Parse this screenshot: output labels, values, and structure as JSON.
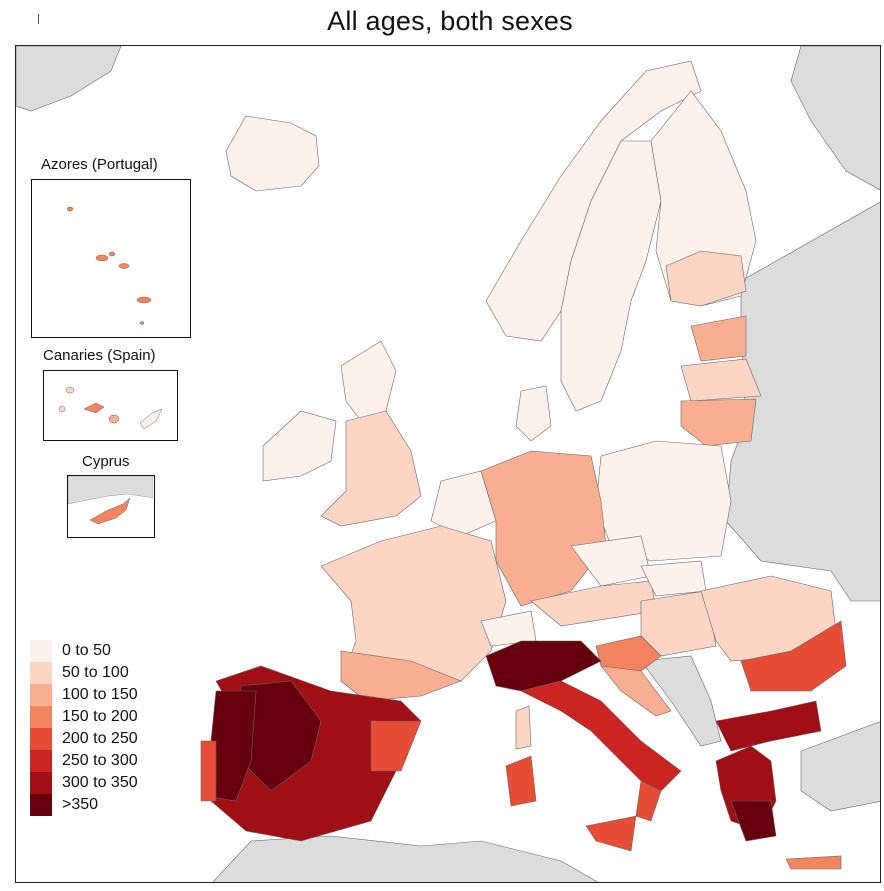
{
  "title": "All ages, both sexes",
  "insets": {
    "azores": {
      "label": "Azores (Portugal)"
    },
    "canaries": {
      "label": "Canaries (Spain)"
    },
    "cyprus": {
      "label": "Cyprus"
    }
  },
  "legend": {
    "items": [
      {
        "label": "0 to 50",
        "color": "#fdf1ec"
      },
      {
        "label": "50 to 100",
        "color": "#fcd5c4"
      },
      {
        "label": "100 to 150",
        "color": "#f9ad91"
      },
      {
        "label": "150 to 200",
        "color": "#f4845f"
      },
      {
        "label": "200 to 250",
        "color": "#e74d34"
      },
      {
        "label": "250 to 300",
        "color": "#cb2421"
      },
      {
        "label": "300 to 350",
        "color": "#a00f16"
      },
      {
        "label": ">350",
        "color": "#67000d"
      }
    ]
  },
  "colors": {
    "land_no_data": "#dcdcdc",
    "sea": "#ffffff",
    "border": "#555555"
  }
}
